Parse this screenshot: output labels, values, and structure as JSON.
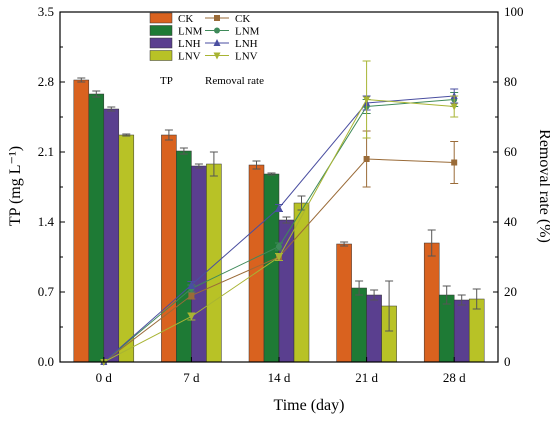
{
  "chart_data": {
    "type": "bar",
    "categories": [
      "0 d",
      "7 d",
      "14 d",
      "21 d",
      "28 d"
    ],
    "xlabel": "Time (day)",
    "ylabel": "TP (mg L⁻¹)",
    "y2label": "Removal rate (%)",
    "ylim": [
      0,
      3.5
    ],
    "y2lim": [
      0,
      100
    ],
    "yticks": [
      "0.0",
      "0.7",
      "1.4",
      "2.1",
      "2.8",
      "3.5"
    ],
    "y2ticks": [
      "0",
      "20",
      "40",
      "60",
      "80",
      "100"
    ],
    "grid": false,
    "legend_position": "top",
    "bar_legend_title": "TP",
    "line_legend_title": "Removal rate",
    "bar_series": [
      {
        "name": "CK",
        "color": "#d9621f",
        "values": [
          2.82,
          2.27,
          1.97,
          1.18,
          1.19
        ],
        "errors": [
          0.02,
          0.05,
          0.04,
          0.02,
          0.13
        ]
      },
      {
        "name": "LNM",
        "color": "#1e7a35",
        "values": [
          2.68,
          2.11,
          1.88,
          0.74,
          0.67
        ],
        "errors": [
          0.03,
          0.03,
          0.01,
          0.07,
          0.09
        ]
      },
      {
        "name": "LNH",
        "color": "#5a3f8f",
        "values": [
          2.53,
          1.96,
          1.42,
          0.67,
          0.62
        ],
        "errors": [
          0.02,
          0.02,
          0.03,
          0.05,
          0.05
        ]
      },
      {
        "name": "LNV",
        "color": "#b8c226",
        "values": [
          2.27,
          1.98,
          1.59,
          0.56,
          0.63
        ],
        "errors": [
          0.01,
          0.12,
          0.07,
          0.25,
          0.1
        ]
      }
    ],
    "line_series": [
      {
        "name": "CK",
        "marker": "square",
        "color": "#9a6b38",
        "values": [
          0,
          19,
          30,
          58,
          57
        ],
        "errors": [
          0,
          1,
          1,
          8,
          6
        ]
      },
      {
        "name": "LNM",
        "marker": "circle",
        "color": "#3f8a5a",
        "values": [
          0,
          21,
          33,
          73,
          75
        ],
        "errors": [
          0,
          1,
          1,
          2,
          2
        ]
      },
      {
        "name": "LNH",
        "marker": "triangle",
        "color": "#4a4ea0",
        "values": [
          0,
          22,
          44,
          74,
          76
        ],
        "errors": [
          0,
          1,
          1,
          2,
          2
        ]
      },
      {
        "name": "LNV",
        "marker": "invtriangle",
        "color": "#a8b433",
        "values": [
          0,
          13,
          30,
          75,
          73
        ],
        "errors": [
          0,
          1,
          1,
          11,
          3
        ]
      }
    ]
  }
}
